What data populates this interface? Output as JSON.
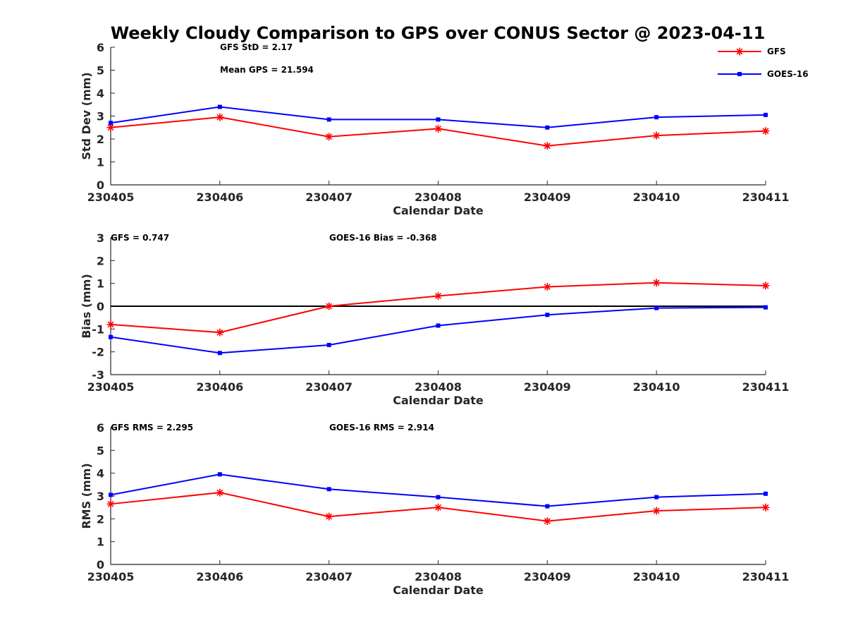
{
  "title": "Weekly Cloudy Comparison to GPS over CONUS Sector @ 2023-04-11",
  "legend": {
    "placement": "top-right",
    "items": [
      {
        "label": "GFS",
        "color": "#ff0000",
        "marker": "asterisk"
      },
      {
        "label": "GOES-16",
        "color": "#0000ff",
        "marker": "square"
      }
    ]
  },
  "chart_data": [
    {
      "type": "line",
      "xlabel": "Calendar Date",
      "ylabel": "Std Dev (mm)",
      "categories": [
        "230405",
        "230406",
        "230407",
        "230408",
        "230409",
        "230410",
        "230411"
      ],
      "ylim": [
        0,
        6
      ],
      "yticks": [
        "0",
        "1",
        "2",
        "3",
        "4",
        "5",
        "6"
      ],
      "zero_line": false,
      "annotations": [
        "GFS StD = 2.17",
        "Mean GPS = 21.594"
      ],
      "series": [
        {
          "name": "GFS",
          "color": "#ff0000",
          "marker": "asterisk",
          "values": [
            2.5,
            2.95,
            2.1,
            2.45,
            1.7,
            2.15,
            2.35
          ]
        },
        {
          "name": "GOES-16",
          "color": "#0000ff",
          "marker": "square",
          "values": [
            2.7,
            3.4,
            2.85,
            2.85,
            2.5,
            2.95,
            3.05
          ]
        }
      ]
    },
    {
      "type": "line",
      "xlabel": "Calendar Date",
      "ylabel": "Bias (mm)",
      "categories": [
        "230405",
        "230406",
        "230407",
        "230408",
        "230409",
        "230410",
        "230411"
      ],
      "ylim": [
        -3,
        3
      ],
      "yticks": [
        "-3",
        "-2",
        "-1",
        "0",
        "1",
        "2",
        "3"
      ],
      "zero_line": true,
      "annotations": [
        "GFS = 0.747",
        "GOES-16 Bias  = -0.368"
      ],
      "series": [
        {
          "name": "GFS",
          "color": "#ff0000",
          "marker": "asterisk",
          "values": [
            -0.8,
            -1.15,
            0.0,
            0.45,
            0.85,
            1.03,
            0.9
          ]
        },
        {
          "name": "GOES-16",
          "color": "#0000ff",
          "marker": "square",
          "values": [
            -1.35,
            -2.05,
            -1.7,
            -0.85,
            -0.38,
            -0.08,
            -0.05
          ]
        }
      ]
    },
    {
      "type": "line",
      "xlabel": "Calendar Date",
      "ylabel": "RMS (mm)",
      "categories": [
        "230405",
        "230406",
        "230407",
        "230408",
        "230409",
        "230410",
        "230411"
      ],
      "ylim": [
        0,
        6
      ],
      "yticks": [
        "0",
        "1",
        "2",
        "3",
        "4",
        "5",
        "6"
      ],
      "zero_line": false,
      "annotations": [
        "GFS RMS = 2.295",
        "GOES-16 RMS = 2.914"
      ],
      "series": [
        {
          "name": "GFS",
          "color": "#ff0000",
          "marker": "asterisk",
          "values": [
            2.65,
            3.15,
            2.1,
            2.5,
            1.9,
            2.35,
            2.5
          ]
        },
        {
          "name": "GOES-16",
          "color": "#0000ff",
          "marker": "square",
          "values": [
            3.05,
            3.95,
            3.3,
            2.95,
            2.55,
            2.95,
            3.1
          ]
        }
      ]
    }
  ]
}
